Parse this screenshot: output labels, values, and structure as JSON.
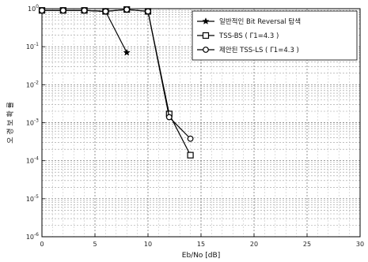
{
  "chart_data": {
    "type": "line",
    "xlabel": "Eb/No [dB]",
    "ylabel": "오 경 보 확 률",
    "xlim": [
      0,
      30
    ],
    "ylim_exp": [
      -6,
      0
    ],
    "y_scale": "log",
    "x_ticks": [
      "0",
      "5",
      "10",
      "15",
      "20",
      "25",
      "30"
    ],
    "y_ticks": [
      {
        "base": "10",
        "exp": "0"
      },
      {
        "base": "10",
        "exp": "-1"
      },
      {
        "base": "10",
        "exp": "-2"
      },
      {
        "base": "10",
        "exp": "-3"
      },
      {
        "base": "10",
        "exp": "-4"
      },
      {
        "base": "10",
        "exp": "-5"
      },
      {
        "base": "10",
        "exp": "-6"
      }
    ],
    "grid": true,
    "legend_position": "top-right",
    "series": [
      {
        "name": "일반적인 Bit Reversal 탐색",
        "marker": "star",
        "x": [
          0,
          2,
          4,
          6,
          8
        ],
        "y": [
          0.9,
          0.9,
          0.9,
          0.85,
          0.07
        ]
      },
      {
        "name": "TSS-BS ( Γ1=4.3 )",
        "marker": "square",
        "x": [
          0,
          2,
          4,
          6,
          8,
          10,
          12,
          14
        ],
        "y": [
          0.9,
          0.9,
          0.9,
          0.85,
          0.95,
          0.85,
          0.0017,
          0.00014
        ]
      },
      {
        "name": "제안된 TSS-LS ( Γ1=4.3 )",
        "marker": "circle",
        "x": [
          0,
          2,
          4,
          6,
          8,
          10,
          12,
          14
        ],
        "y": [
          0.9,
          0.9,
          0.9,
          0.85,
          0.95,
          0.85,
          0.0014,
          0.00038
        ]
      }
    ]
  }
}
